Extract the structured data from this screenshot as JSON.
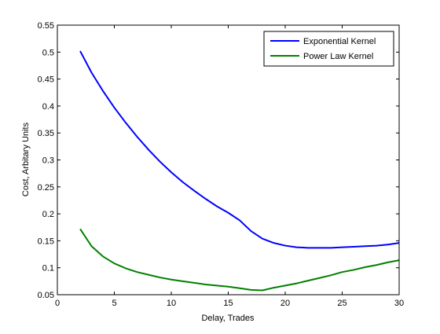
{
  "chart_data": {
    "type": "line",
    "title": "",
    "xlabel": "Delay, Trades",
    "ylabel": "Cost, Arbitary Units",
    "xlim": [
      0,
      30
    ],
    "ylim": [
      0.05,
      0.55
    ],
    "xticks": [
      0,
      5,
      10,
      15,
      20,
      25,
      30
    ],
    "yticks": [
      0.05,
      0.1,
      0.15,
      0.2,
      0.25,
      0.3,
      0.35,
      0.4,
      0.45,
      0.5,
      0.55
    ],
    "xtick_labels": [
      "0",
      "5",
      "10",
      "15",
      "20",
      "25",
      "30"
    ],
    "ytick_labels": [
      "0.05",
      "0.1",
      "0.15",
      "0.2",
      "0.25",
      "0.3",
      "0.35",
      "0.4",
      "0.45",
      "0.5",
      "0.55"
    ],
    "grid": false,
    "legend_position": "top-right",
    "series": [
      {
        "name": "Exponential Kernel",
        "color": "#0000ff",
        "x": [
          2,
          3,
          4,
          5,
          6,
          7,
          8,
          9,
          10,
          11,
          12,
          13,
          14,
          15,
          16,
          17,
          18,
          19,
          20,
          21,
          22,
          23,
          24,
          25,
          26,
          27,
          28,
          29,
          30
        ],
        "y": [
          0.502,
          0.462,
          0.428,
          0.397,
          0.369,
          0.343,
          0.319,
          0.297,
          0.277,
          0.259,
          0.243,
          0.228,
          0.214,
          0.202,
          0.188,
          0.168,
          0.154,
          0.146,
          0.141,
          0.138,
          0.137,
          0.137,
          0.137,
          0.138,
          0.139,
          0.14,
          0.141,
          0.143,
          0.146
        ]
      },
      {
        "name": "Power Law Kernel",
        "color": "#008000",
        "x": [
          2,
          3,
          4,
          5,
          6,
          7,
          8,
          9,
          10,
          11,
          12,
          13,
          14,
          15,
          16,
          17,
          18,
          19,
          20,
          21,
          22,
          23,
          24,
          25,
          26,
          27,
          28,
          29,
          30
        ],
        "y": [
          0.172,
          0.14,
          0.121,
          0.108,
          0.099,
          0.092,
          0.087,
          0.082,
          0.078,
          0.075,
          0.072,
          0.069,
          0.067,
          0.065,
          0.062,
          0.059,
          0.058,
          0.063,
          0.067,
          0.071,
          0.076,
          0.081,
          0.086,
          0.092,
          0.096,
          0.101,
          0.105,
          0.11,
          0.114
        ]
      }
    ]
  }
}
